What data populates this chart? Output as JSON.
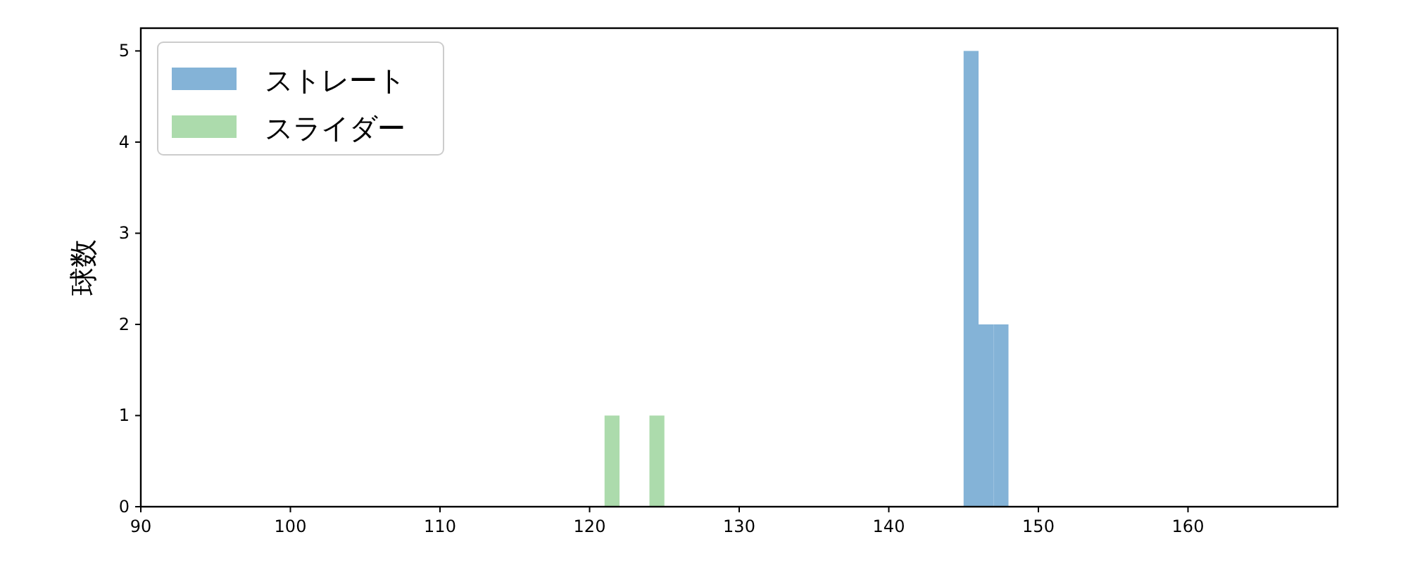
{
  "chart_data": {
    "type": "histogram",
    "ylabel": "球数",
    "xlim": [
      90,
      170
    ],
    "ylim": [
      0,
      5.25
    ],
    "xticks": [
      90,
      100,
      110,
      120,
      130,
      140,
      150,
      160
    ],
    "yticks": [
      0,
      1,
      2,
      3,
      4,
      5
    ],
    "grid": false,
    "legend": "top left",
    "bins": [
      121,
      122,
      123,
      124,
      125,
      126,
      127,
      128,
      129,
      130,
      131,
      132,
      133,
      134,
      135,
      136,
      137,
      138,
      139,
      140,
      141,
      142,
      143,
      144,
      145,
      146,
      147,
      148
    ],
    "series": [
      {
        "name": "ストレート",
        "color": "#84b3d7",
        "values": [
          0,
          0,
          0,
          0,
          0,
          0,
          0,
          0,
          0,
          0,
          0,
          0,
          0,
          0,
          0,
          0,
          0,
          0,
          0,
          0,
          0,
          0,
          0,
          0,
          5,
          2,
          2
        ]
      },
      {
        "name": "スライダー",
        "color": "#acdbac",
        "values": [
          1,
          0,
          0,
          1,
          0,
          0,
          0,
          0,
          0,
          0,
          0,
          0,
          0,
          0,
          0,
          0,
          0,
          0,
          0,
          0,
          0,
          0,
          0,
          0,
          0,
          0,
          0
        ]
      }
    ]
  }
}
